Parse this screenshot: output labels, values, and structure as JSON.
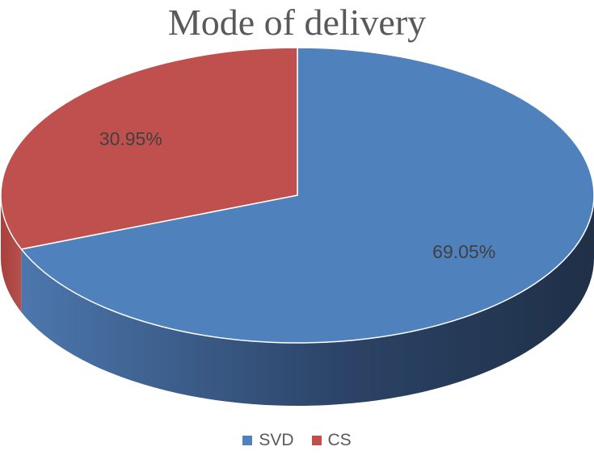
{
  "chart_data": {
    "type": "pie",
    "title": "Mode of delivery",
    "style": "3d",
    "start_angle": "12 o'clock",
    "direction": "clockwise",
    "legend_position": "bottom",
    "slices": [
      {
        "label": "SVD",
        "value": 69.05,
        "data_label": "69.05%",
        "color": "#4F81BD"
      },
      {
        "label": "CS",
        "value": 30.95,
        "data_label": "30.95%",
        "color": "#C0504D"
      }
    ]
  }
}
